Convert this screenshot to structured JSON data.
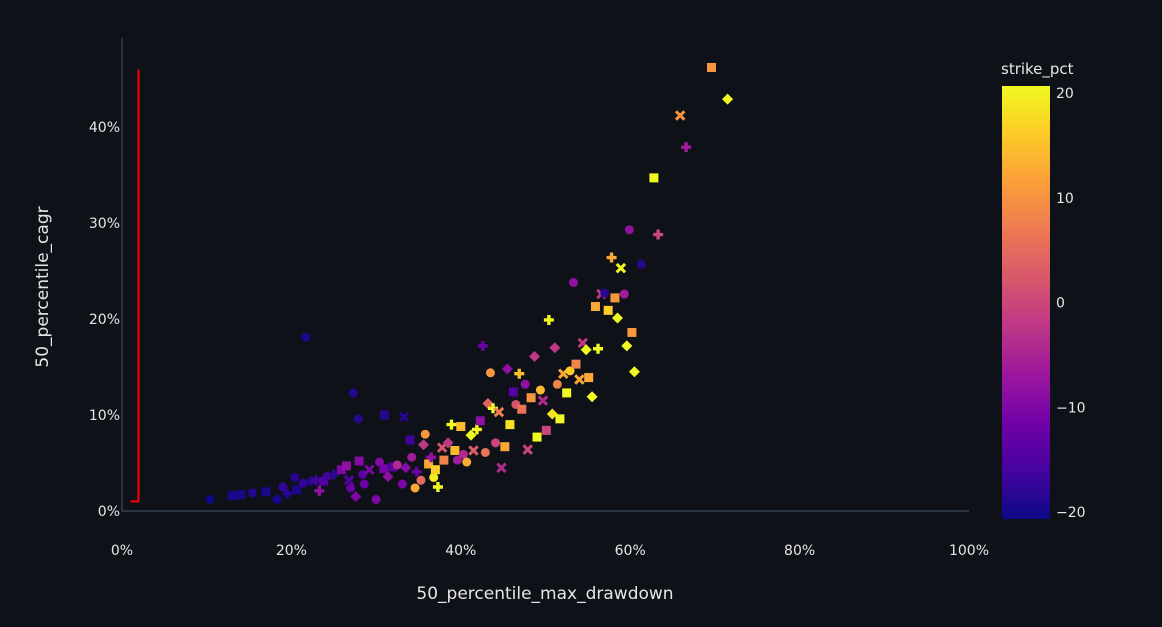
{
  "chart_data": {
    "type": "scatter",
    "title": "",
    "xlabel": "50_percentile_max_drawdown",
    "ylabel": "50_percentile_cagr",
    "xlim": [
      0,
      100
    ],
    "ylim": [
      -0.5,
      49
    ],
    "x_ticks": [
      "0%",
      "20%",
      "40%",
      "60%",
      "80%",
      "100%"
    ],
    "y_ticks": [
      "0%",
      "10%",
      "20%",
      "30%",
      "40%"
    ],
    "grid": false,
    "colorbar": {
      "title": "strike_pct",
      "range": [
        -20,
        20
      ],
      "ticks": [
        "20",
        "10",
        "0",
        "−10",
        "−20"
      ],
      "colors": [
        "#0d0887",
        "#46039f",
        "#7201a8",
        "#9c179e",
        "#bd3786",
        "#d8576b",
        "#ed7953",
        "#fb9f3a",
        "#fdca26",
        "#f0f921"
      ]
    },
    "reference_line": {
      "color": "#ff0000",
      "x": 1,
      "y_from": 1,
      "y_to": 46
    },
    "points": [
      {
        "x": 10.4,
        "y": 1.2,
        "c": -20,
        "m": "circle"
      },
      {
        "x": 13,
        "y": 1.6,
        "c": -19,
        "m": "square"
      },
      {
        "x": 14,
        "y": 1.7,
        "c": -19,
        "m": "square"
      },
      {
        "x": 15.4,
        "y": 1.9,
        "c": -18,
        "m": "circle"
      },
      {
        "x": 17,
        "y": 2,
        "c": -19,
        "m": "square"
      },
      {
        "x": 18.3,
        "y": 1.2,
        "c": -19,
        "m": "circle"
      },
      {
        "x": 19,
        "y": 2.5,
        "c": -17,
        "m": "circle"
      },
      {
        "x": 19.5,
        "y": 1.8,
        "c": -18,
        "m": "diamond"
      },
      {
        "x": 20.4,
        "y": 3.5,
        "c": -18,
        "m": "circle"
      },
      {
        "x": 20.6,
        "y": 2.2,
        "c": -19,
        "m": "square"
      },
      {
        "x": 21.4,
        "y": 2.9,
        "c": -17,
        "m": "circle"
      },
      {
        "x": 21.7,
        "y": 18.1,
        "c": -19,
        "m": "circle"
      },
      {
        "x": 22.3,
        "y": 3.1,
        "c": -18,
        "m": "diamond"
      },
      {
        "x": 22.9,
        "y": 3.2,
        "c": -16,
        "m": "cross"
      },
      {
        "x": 23.3,
        "y": 2.1,
        "c": -8,
        "m": "cross"
      },
      {
        "x": 23.8,
        "y": 3.1,
        "c": -14,
        "m": "square"
      },
      {
        "x": 24.2,
        "y": 3.6,
        "c": -16,
        "m": "circle"
      },
      {
        "x": 25,
        "y": 3.8,
        "c": -17,
        "m": "cross"
      },
      {
        "x": 25.9,
        "y": 4.3,
        "c": -10,
        "m": "square"
      },
      {
        "x": 26.5,
        "y": 4.7,
        "c": -8,
        "m": "square"
      },
      {
        "x": 26.8,
        "y": 3.2,
        "c": -14,
        "m": "x"
      },
      {
        "x": 27,
        "y": 2.4,
        "c": -12,
        "m": "circle"
      },
      {
        "x": 27.3,
        "y": 12.3,
        "c": -18,
        "m": "circle"
      },
      {
        "x": 27.6,
        "y": 1.5,
        "c": -10,
        "m": "diamond"
      },
      {
        "x": 27.9,
        "y": 9.6,
        "c": -18,
        "m": "circle"
      },
      {
        "x": 28,
        "y": 5.2,
        "c": -9,
        "m": "square"
      },
      {
        "x": 28.4,
        "y": 3.8,
        "c": -14,
        "m": "circle"
      },
      {
        "x": 28.6,
        "y": 2.8,
        "c": -12,
        "m": "circle"
      },
      {
        "x": 29.2,
        "y": 4.3,
        "c": -10,
        "m": "x"
      },
      {
        "x": 30,
        "y": 1.2,
        "c": -10,
        "m": "circle"
      },
      {
        "x": 30.4,
        "y": 5.1,
        "c": -9,
        "m": "circle"
      },
      {
        "x": 30.9,
        "y": 4.4,
        "c": -11,
        "m": "square"
      },
      {
        "x": 31,
        "y": 10,
        "c": -18,
        "m": "square"
      },
      {
        "x": 31.4,
        "y": 3.6,
        "c": -8,
        "m": "diamond"
      },
      {
        "x": 32,
        "y": 4.6,
        "c": -13,
        "m": "square"
      },
      {
        "x": 32.5,
        "y": 4.8,
        "c": -4,
        "m": "circle"
      },
      {
        "x": 33.1,
        "y": 2.8,
        "c": -10,
        "m": "circle"
      },
      {
        "x": 33.3,
        "y": 9.8,
        "c": -18,
        "m": "x"
      },
      {
        "x": 33.5,
        "y": 4.5,
        "c": -9,
        "m": "diamond"
      },
      {
        "x": 34,
        "y": 7.4,
        "c": -16,
        "m": "square"
      },
      {
        "x": 34.2,
        "y": 5.6,
        "c": -6,
        "m": "circle"
      },
      {
        "x": 34.6,
        "y": 2.4,
        "c": 12,
        "m": "circle"
      },
      {
        "x": 34.8,
        "y": 4.1,
        "c": -12,
        "m": "cross"
      },
      {
        "x": 35.3,
        "y": 3.2,
        "c": 5,
        "m": "circle"
      },
      {
        "x": 35.6,
        "y": 6.9,
        "c": -2,
        "m": "diamond"
      },
      {
        "x": 35.8,
        "y": 8,
        "c": 10,
        "m": "circle"
      },
      {
        "x": 36.2,
        "y": 4.9,
        "c": 12,
        "m": "square"
      },
      {
        "x": 36.5,
        "y": 5.6,
        "c": -8,
        "m": "cross"
      },
      {
        "x": 36.8,
        "y": 3.5,
        "c": 19,
        "m": "circle"
      },
      {
        "x": 37,
        "y": 4.3,
        "c": 16,
        "m": "square"
      },
      {
        "x": 37.3,
        "y": 2.5,
        "c": 20,
        "m": "cross"
      },
      {
        "x": 37.8,
        "y": 6.6,
        "c": 2,
        "m": "x"
      },
      {
        "x": 38,
        "y": 5.3,
        "c": 8,
        "m": "square"
      },
      {
        "x": 38.5,
        "y": 7.1,
        "c": -2,
        "m": "diamond"
      },
      {
        "x": 38.9,
        "y": 9,
        "c": 20,
        "m": "cross"
      },
      {
        "x": 39.3,
        "y": 6.3,
        "c": 14,
        "m": "square"
      },
      {
        "x": 39.6,
        "y": 5.3,
        "c": -6,
        "m": "circle"
      },
      {
        "x": 40,
        "y": 8.8,
        "c": 14,
        "m": "square"
      },
      {
        "x": 40.3,
        "y": 5.9,
        "c": -4,
        "m": "circle"
      },
      {
        "x": 40.7,
        "y": 5.1,
        "c": 12,
        "m": "circle"
      },
      {
        "x": 41.2,
        "y": 7.9,
        "c": 20,
        "m": "diamond"
      },
      {
        "x": 41.5,
        "y": 6.3,
        "c": 3,
        "m": "x"
      },
      {
        "x": 41.9,
        "y": 8.5,
        "c": 20,
        "m": "cross"
      },
      {
        "x": 42.3,
        "y": 9.4,
        "c": -8,
        "m": "square"
      },
      {
        "x": 42.6,
        "y": 17.2,
        "c": -12,
        "m": "cross"
      },
      {
        "x": 42.9,
        "y": 6.1,
        "c": 6,
        "m": "circle"
      },
      {
        "x": 43.2,
        "y": 11.2,
        "c": 4,
        "m": "diamond"
      },
      {
        "x": 43.5,
        "y": 14.4,
        "c": 10,
        "m": "circle"
      },
      {
        "x": 43.8,
        "y": 10.7,
        "c": 20,
        "m": "cross"
      },
      {
        "x": 44.1,
        "y": 7.1,
        "c": 0,
        "m": "circle"
      },
      {
        "x": 44.5,
        "y": 10.3,
        "c": 8,
        "m": "x"
      },
      {
        "x": 44.8,
        "y": 4.5,
        "c": -4,
        "m": "x"
      },
      {
        "x": 45.2,
        "y": 6.7,
        "c": 12,
        "m": "square"
      },
      {
        "x": 45.5,
        "y": 14.8,
        "c": -8,
        "m": "diamond"
      },
      {
        "x": 45.8,
        "y": 9,
        "c": 18,
        "m": "square"
      },
      {
        "x": 46.2,
        "y": 12.4,
        "c": -14,
        "m": "square"
      },
      {
        "x": 46.5,
        "y": 11.1,
        "c": 2,
        "m": "circle"
      },
      {
        "x": 46.9,
        "y": 14.3,
        "c": 14,
        "m": "cross"
      },
      {
        "x": 47.2,
        "y": 10.6,
        "c": 6,
        "m": "square"
      },
      {
        "x": 47.6,
        "y": 13.2,
        "c": -8,
        "m": "circle"
      },
      {
        "x": 47.9,
        "y": 6.4,
        "c": 0,
        "m": "x"
      },
      {
        "x": 48.3,
        "y": 11.8,
        "c": 10,
        "m": "square"
      },
      {
        "x": 48.7,
        "y": 16.1,
        "c": -2,
        "m": "diamond"
      },
      {
        "x": 49,
        "y": 7.7,
        "c": 20,
        "m": "square"
      },
      {
        "x": 49.4,
        "y": 12.6,
        "c": 14,
        "m": "circle"
      },
      {
        "x": 49.7,
        "y": 11.5,
        "c": -4,
        "m": "x"
      },
      {
        "x": 50.1,
        "y": 8.4,
        "c": 0,
        "m": "square"
      },
      {
        "x": 50.4,
        "y": 19.9,
        "c": 20,
        "m": "cross"
      },
      {
        "x": 50.8,
        "y": 10.1,
        "c": 18,
        "m": "diamond"
      },
      {
        "x": 51.1,
        "y": 17,
        "c": -2,
        "m": "diamond"
      },
      {
        "x": 51.4,
        "y": 13.2,
        "c": 8,
        "m": "circle"
      },
      {
        "x": 51.7,
        "y": 9.6,
        "c": 20,
        "m": "square"
      },
      {
        "x": 52.1,
        "y": 14.3,
        "c": 12,
        "m": "x"
      },
      {
        "x": 52.5,
        "y": 12.3,
        "c": 20,
        "m": "square"
      },
      {
        "x": 52.9,
        "y": 14.6,
        "c": 16,
        "m": "circle"
      },
      {
        "x": 53.3,
        "y": 23.8,
        "c": -8,
        "m": "circle"
      },
      {
        "x": 53.6,
        "y": 15.3,
        "c": 8,
        "m": "square"
      },
      {
        "x": 54,
        "y": 13.7,
        "c": 12,
        "m": "x"
      },
      {
        "x": 54.4,
        "y": 17.5,
        "c": -2,
        "m": "x"
      },
      {
        "x": 54.8,
        "y": 16.8,
        "c": 20,
        "m": "diamond"
      },
      {
        "x": 55.1,
        "y": 13.9,
        "c": 12,
        "m": "square"
      },
      {
        "x": 55.5,
        "y": 11.9,
        "c": 20,
        "m": "diamond"
      },
      {
        "x": 55.9,
        "y": 21.3,
        "c": 12,
        "m": "square"
      },
      {
        "x": 56.2,
        "y": 16.9,
        "c": 20,
        "m": "cross"
      },
      {
        "x": 56.6,
        "y": 22.6,
        "c": -2,
        "m": "x"
      },
      {
        "x": 57,
        "y": 22.7,
        "c": -18,
        "m": "circle"
      },
      {
        "x": 57.4,
        "y": 20.9,
        "c": 16,
        "m": "square"
      },
      {
        "x": 57.8,
        "y": 26.4,
        "c": 12,
        "m": "cross"
      },
      {
        "x": 58.2,
        "y": 22.2,
        "c": 10,
        "m": "square"
      },
      {
        "x": 58.5,
        "y": 20.1,
        "c": 20,
        "m": "diamond"
      },
      {
        "x": 58.9,
        "y": 25.3,
        "c": 20,
        "m": "x"
      },
      {
        "x": 59.3,
        "y": 22.6,
        "c": -6,
        "m": "circle"
      },
      {
        "x": 59.6,
        "y": 17.2,
        "c": 20,
        "m": "diamond"
      },
      {
        "x": 59.9,
        "y": 29.3,
        "c": -8,
        "m": "circle"
      },
      {
        "x": 60.2,
        "y": 18.6,
        "c": 10,
        "m": "square"
      },
      {
        "x": 60.5,
        "y": 14.5,
        "c": 20,
        "m": "diamond"
      },
      {
        "x": 61.3,
        "y": 25.7,
        "c": -18,
        "m": "circle"
      },
      {
        "x": 62.8,
        "y": 34.7,
        "c": 20,
        "m": "square"
      },
      {
        "x": 63.3,
        "y": 28.8,
        "c": 0,
        "m": "cross"
      },
      {
        "x": 65.9,
        "y": 41.2,
        "c": 10,
        "m": "x"
      },
      {
        "x": 66.6,
        "y": 37.9,
        "c": -6,
        "m": "cross"
      },
      {
        "x": 69.6,
        "y": 46.2,
        "c": 10,
        "m": "square"
      },
      {
        "x": 71.5,
        "y": 42.9,
        "c": 20,
        "m": "diamond"
      }
    ]
  }
}
